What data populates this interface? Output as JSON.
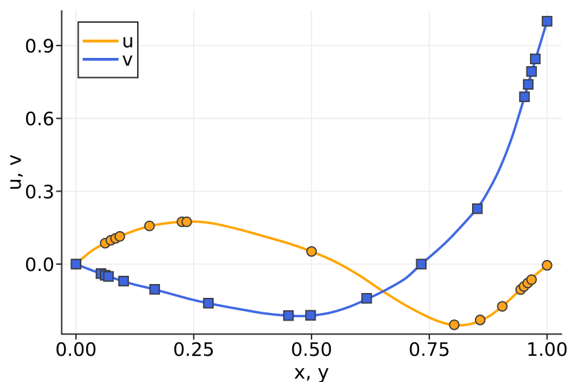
{
  "chart_data": {
    "type": "line",
    "title": "",
    "xlabel": "x, y",
    "ylabel": "u, v",
    "xlim": [
      -0.0304,
      1.0317
    ],
    "ylim": [
      -0.2882,
      1.0449
    ],
    "grid": true,
    "legend_position": "top-left",
    "xticks": {
      "values": [
        0.0,
        0.25,
        0.5,
        0.75,
        1.0
      ],
      "labels": [
        "0.00",
        "0.25",
        "0.50",
        "0.75",
        "1.00"
      ]
    },
    "yticks": {
      "values": [
        0.0,
        0.3,
        0.6,
        0.9
      ],
      "labels": [
        "0.0",
        "0.3",
        "0.6",
        "0.9"
      ]
    },
    "colors": {
      "background": "#FFFFFF",
      "grid": "#E9E9E9",
      "spine": "#2A2A2A",
      "text": "#000000"
    },
    "series": [
      {
        "name": "u",
        "color": "#FFA500",
        "marker": "circle",
        "marker_color": "#FFA41C",
        "marker_stroke": "#3B3B3B",
        "curve": [
          [
            0.0,
            0.0
          ],
          [
            0.03,
            0.05
          ],
          [
            0.06,
            0.085
          ],
          [
            0.09,
            0.112
          ],
          [
            0.12,
            0.135
          ],
          [
            0.15,
            0.153
          ],
          [
            0.18,
            0.165
          ],
          [
            0.21,
            0.172
          ],
          [
            0.24,
            0.175
          ],
          [
            0.27,
            0.173
          ],
          [
            0.3,
            0.164
          ],
          [
            0.35,
            0.141
          ],
          [
            0.4,
            0.114
          ],
          [
            0.45,
            0.086
          ],
          [
            0.5,
            0.052
          ],
          [
            0.55,
            0.01
          ],
          [
            0.6,
            -0.045
          ],
          [
            0.65,
            -0.11
          ],
          [
            0.7,
            -0.17
          ],
          [
            0.75,
            -0.22
          ],
          [
            0.785,
            -0.245
          ],
          [
            0.815,
            -0.252
          ],
          [
            0.845,
            -0.243
          ],
          [
            0.875,
            -0.217
          ],
          [
            0.905,
            -0.174
          ],
          [
            0.935,
            -0.12
          ],
          [
            0.965,
            -0.062
          ],
          [
            1.0,
            -0.005
          ]
        ],
        "points": [
          [
            0.0,
            0.0
          ],
          [
            0.062,
            0.086
          ],
          [
            0.074,
            0.098
          ],
          [
            0.084,
            0.106
          ],
          [
            0.093,
            0.114
          ],
          [
            0.156,
            0.157
          ],
          [
            0.225,
            0.174
          ],
          [
            0.235,
            0.174
          ],
          [
            0.5,
            0.052
          ],
          [
            0.803,
            -0.25
          ],
          [
            0.858,
            -0.23
          ],
          [
            0.905,
            -0.174
          ],
          [
            0.944,
            -0.105
          ],
          [
            0.951,
            -0.092
          ],
          [
            0.959,
            -0.078
          ],
          [
            0.967,
            -0.064
          ],
          [
            1.0,
            -0.005
          ]
        ]
      },
      {
        "name": "v",
        "color": "#4169E1",
        "marker": "square",
        "marker_color": "#3D66E0",
        "marker_stroke": "#3B3B3B",
        "curve": [
          [
            0.0,
            0.0
          ],
          [
            0.04,
            -0.03
          ],
          [
            0.08,
            -0.058
          ],
          [
            0.12,
            -0.082
          ],
          [
            0.16,
            -0.101
          ],
          [
            0.2,
            -0.122
          ],
          [
            0.24,
            -0.143
          ],
          [
            0.28,
            -0.161
          ],
          [
            0.32,
            -0.176
          ],
          [
            0.36,
            -0.19
          ],
          [
            0.4,
            -0.203
          ],
          [
            0.44,
            -0.211
          ],
          [
            0.47,
            -0.214
          ],
          [
            0.5,
            -0.212
          ],
          [
            0.54,
            -0.2
          ],
          [
            0.58,
            -0.176
          ],
          [
            0.62,
            -0.142
          ],
          [
            0.66,
            -0.104
          ],
          [
            0.7,
            -0.058
          ],
          [
            0.733,
            0.0
          ],
          [
            0.77,
            0.062
          ],
          [
            0.8,
            0.118
          ],
          [
            0.85,
            0.226
          ],
          [
            0.875,
            0.3
          ],
          [
            0.9,
            0.396
          ],
          [
            0.925,
            0.52
          ],
          [
            0.952,
            0.688
          ],
          [
            0.975,
            0.84
          ],
          [
            1.0,
            1.0
          ]
        ],
        "points": [
          [
            0.0,
            0.0
          ],
          [
            0.053,
            -0.039
          ],
          [
            0.062,
            -0.046
          ],
          [
            0.069,
            -0.051
          ],
          [
            0.101,
            -0.07
          ],
          [
            0.167,
            -0.104
          ],
          [
            0.281,
            -0.161
          ],
          [
            0.451,
            -0.212
          ],
          [
            0.498,
            -0.211
          ],
          [
            0.617,
            -0.141
          ],
          [
            0.733,
            0.0
          ],
          [
            0.852,
            0.228
          ],
          [
            0.952,
            0.689
          ],
          [
            0.96,
            0.74
          ],
          [
            0.967,
            0.793
          ],
          [
            0.975,
            0.845
          ],
          [
            1.0,
            1.0
          ]
        ]
      }
    ]
  }
}
